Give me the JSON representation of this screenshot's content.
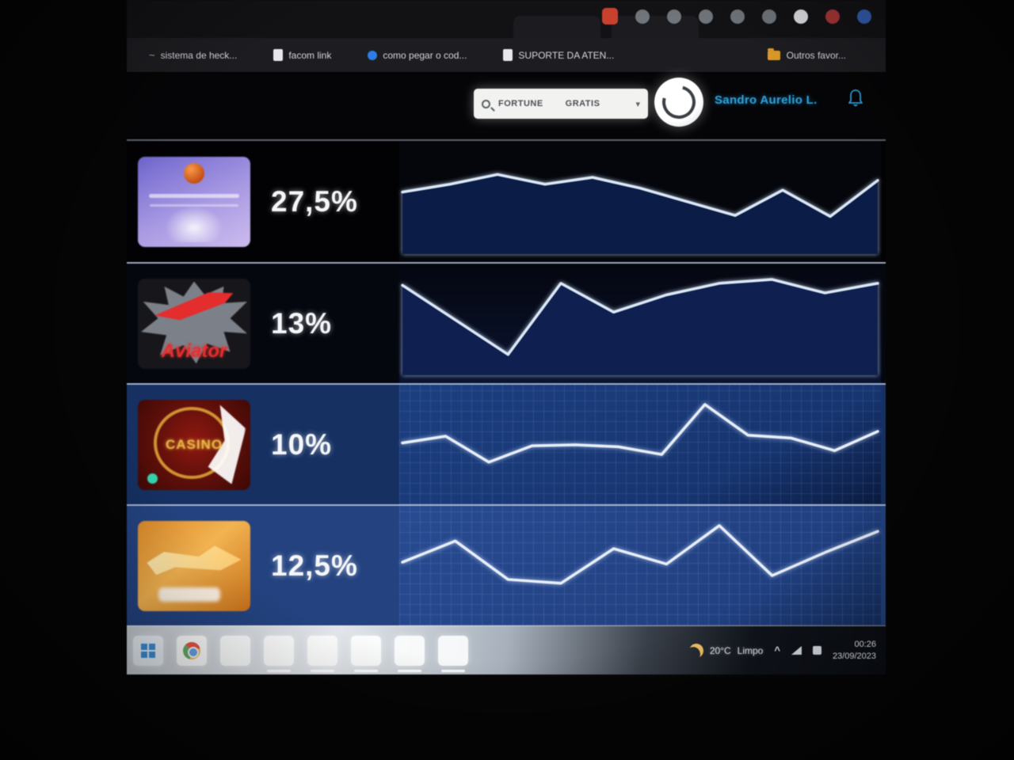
{
  "browser": {
    "bookmarks_bar": {
      "items": [
        {
          "label": "sistema de heck...",
          "favicon": "tilde-favicon"
        },
        {
          "label": "facom link",
          "favicon": "doc-favicon"
        },
        {
          "label": "como pegar o cod...",
          "favicon": "blue-dot-favicon"
        },
        {
          "label": "SUPORTE DA ATEN...",
          "favicon": "doc-favicon"
        }
      ],
      "other_favorites_label": "Outros favor..."
    }
  },
  "header": {
    "search_value_left": "FORTUNE",
    "search_value_right": "GRATIS",
    "user_name": "Sandro Aurelio L.",
    "accent_blue": "#2f9fd6"
  },
  "games": [
    {
      "name": "purple-sports-game",
      "win_rate": "27,5%"
    },
    {
      "name": "aviator",
      "icon_text": "Aviator",
      "win_rate": "13%"
    },
    {
      "name": "casino",
      "icon_text": "CASINO",
      "win_rate": "10%"
    },
    {
      "name": "orange-slot-game",
      "win_rate": "12,5%"
    }
  ],
  "chart_data": [
    {
      "type": "line",
      "name": "game-1-trend",
      "values": [
        58,
        66,
        76,
        66,
        73,
        62,
        48,
        34,
        60,
        33,
        70
      ],
      "line_color": "#dce8f4",
      "area_fill": "#0c1c45",
      "grid": false
    },
    {
      "type": "line",
      "name": "game-2-trend",
      "values": [
        88,
        52,
        16,
        90,
        60,
        78,
        90,
        94,
        80,
        90
      ],
      "line_color": "#dce8f4",
      "area_fill": "#101f4e",
      "grid": false
    },
    {
      "type": "line",
      "name": "game-3-trend",
      "values": [
        50,
        57,
        30,
        47,
        48,
        46,
        38,
        90,
        58,
        55,
        42,
        62
      ],
      "line_color": "#e9eff7",
      "grid": true
    },
    {
      "type": "line",
      "name": "game-4-trend",
      "values": [
        52,
        74,
        34,
        30,
        66,
        50,
        90,
        38,
        62,
        84
      ],
      "line_color": "#e9eff7",
      "grid": true
    }
  ],
  "taskbar": {
    "weather_temp": "20°C",
    "weather_condition": "Limpo",
    "time": "00:26",
    "date": "23/09/2023"
  }
}
